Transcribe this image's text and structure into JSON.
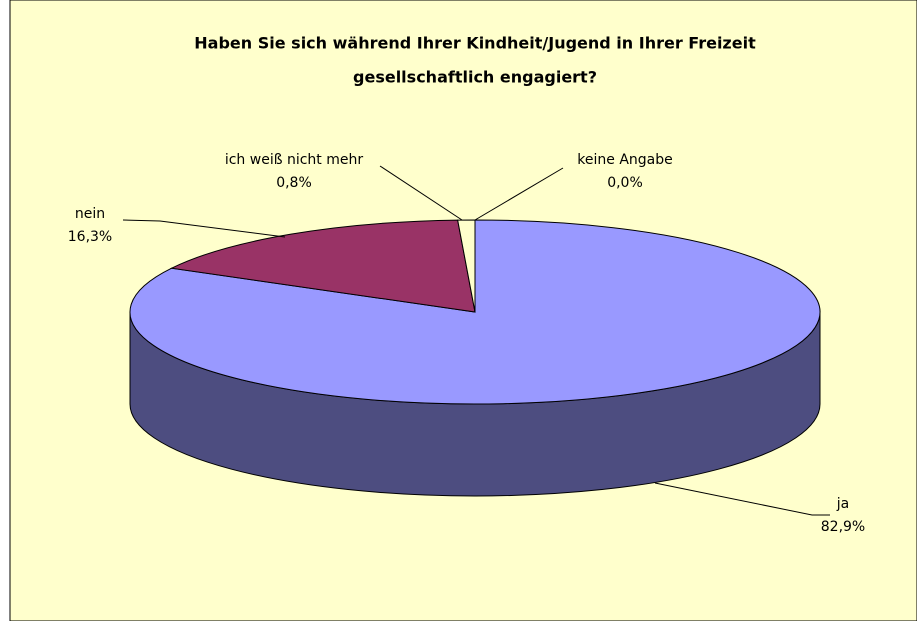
{
  "chart_data": {
    "type": "pie3d",
    "title": [
      "Haben Sie sich während Ihrer Kindheit/Jugend in Ihrer Freizeit",
      "gesellschaftlich engagiert?"
    ],
    "categories": [
      "ja",
      "nein",
      "ich weiß nicht mehr",
      "keine Angabe"
    ],
    "values": [
      82.9,
      16.3,
      0.8,
      0.0
    ],
    "value_labels": [
      "82,9%",
      "16,3%",
      "0,8%",
      "0,0%"
    ],
    "colors": [
      "#9999ff",
      "#993366",
      "#ffffcc",
      "#ffffff"
    ],
    "side_colors": [
      "#4d4d80",
      "#4d1a33",
      "#808066",
      "#808080"
    ]
  }
}
